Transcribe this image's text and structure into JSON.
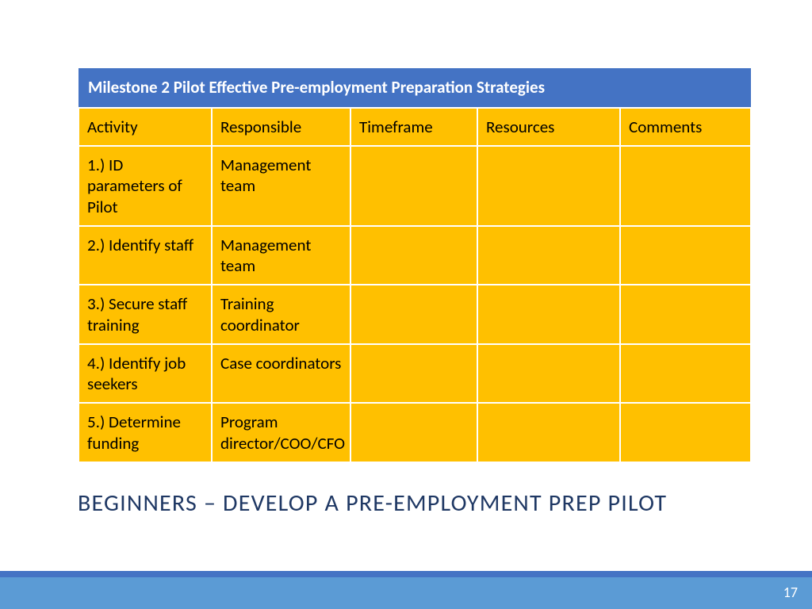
{
  "table": {
    "title": "Milestone 2  Pilot Effective Pre-employment Preparation Strategies",
    "columns": [
      "Activity",
      "Responsible",
      "Timeframe",
      "Resources",
      "Comments"
    ],
    "rows": [
      [
        "1.) ID parameters of Pilot",
        "Management team",
        "",
        "",
        ""
      ],
      [
        "2.) Identify staff",
        "Management team",
        "",
        "",
        ""
      ],
      [
        "3.) Secure staff training",
        "Training coordinator",
        "",
        "",
        ""
      ],
      [
        "4.) Identify job seekers",
        "Case coordinators",
        "",
        "",
        ""
      ],
      [
        "5.) Determine funding",
        "Program director/COO/CFO",
        "",
        "",
        ""
      ]
    ],
    "header_bg": "#4473c4",
    "header_text_color": "#ffffff",
    "cell_bg": "#ffc000",
    "cell_text_color": "#000000",
    "border_color": "#ffffff"
  },
  "subtitle": "BEGINNERS – DEVELOP A PRE-EMPLOYMENT PREP PILOT",
  "subtitle_color": "#1f3864",
  "footer": {
    "page_number": "17",
    "bar1_color": "#4473c4",
    "bar2_color": "#5b9bd5",
    "pagenum_color": "#ffffff"
  }
}
